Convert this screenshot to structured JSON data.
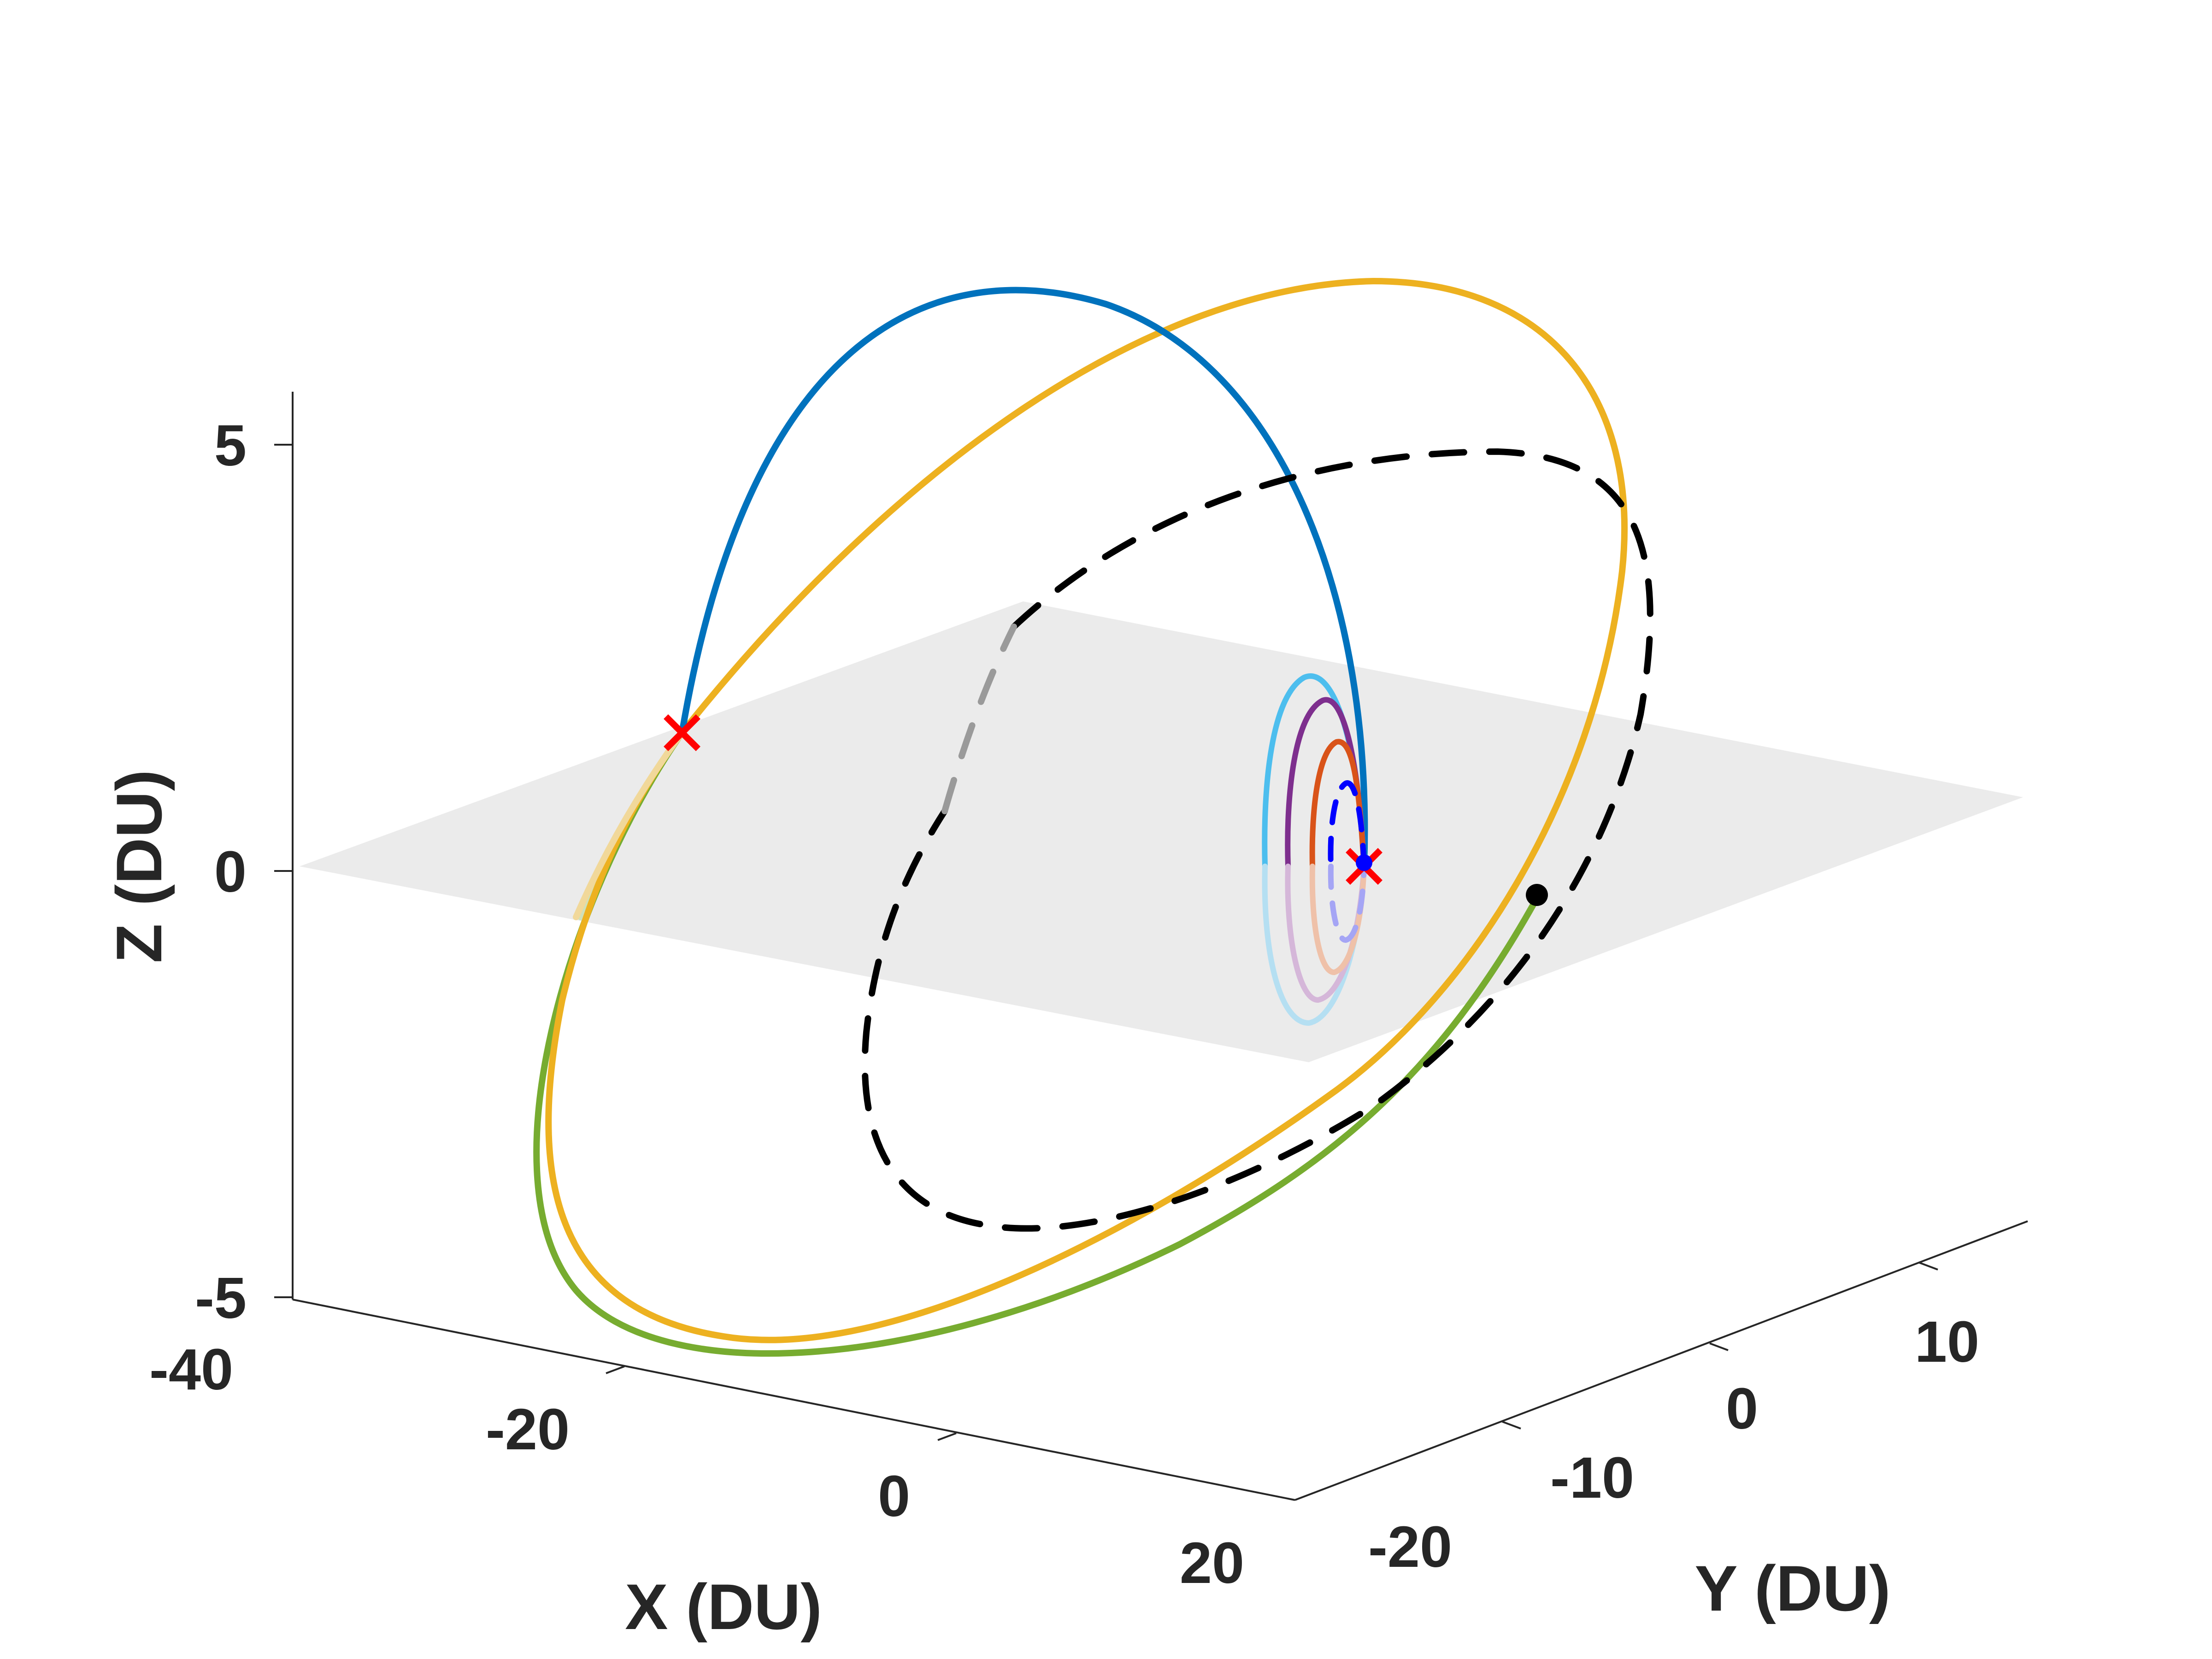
{
  "chart_data": {
    "type": "line",
    "title": "",
    "view": "3d",
    "xlabel": "X (DU)",
    "ylabel": "Y (DU)",
    "zlabel": "Z (DU)",
    "xlim": [
      -40,
      20
    ],
    "ylim": [
      -20,
      15
    ],
    "zlim": [
      -5,
      5
    ],
    "xticks": [
      -40,
      -20,
      0,
      20
    ],
    "yticks": [
      -20,
      -10,
      0,
      10
    ],
    "zticks": [
      -5,
      0,
      5
    ],
    "grid": false,
    "legend": "none",
    "reference_plane": {
      "z": 0,
      "color": "#e0e0e0"
    },
    "colors": {
      "blue": "#0072BD",
      "orange": "#D95319",
      "yellow": "#EDB120",
      "purple": "#7E2F8E",
      "green": "#77AC30",
      "cyan": "#4DBEEE",
      "dashed_orbit": "#000000",
      "dashed_inner": "#0000FF",
      "marker": "#FF0000"
    },
    "series": [
      {
        "color": "blue",
        "style": "solid",
        "description": "high arc from about (-26, 0, 1.6) over the top to the origin"
      },
      {
        "color": "yellow",
        "style": "solid",
        "description": "large inclined ellipse reaching z ≈ 6.6 and z ≈ -5"
      },
      {
        "color": "green",
        "style": "solid",
        "description": "lower large ellipse, tangent to the yellow one"
      },
      {
        "color": "dashed_orbit",
        "style": "dashed",
        "description": "black dashed orbit crossing the plane"
      },
      {
        "color": "cyan",
        "style": "solid",
        "description": "small loop near the origin (outer)"
      },
      {
        "color": "purple",
        "style": "solid",
        "description": "small loop near the origin"
      },
      {
        "color": "orange",
        "style": "solid",
        "description": "small loop near the origin (inner)"
      },
      {
        "color": "dashed_inner",
        "style": "dashed",
        "description": "tiny blue dashed loop at the origin"
      }
    ],
    "markers": [
      {
        "shape": "x",
        "color": "marker",
        "x": -26,
        "y": 0,
        "z": 1.6
      },
      {
        "shape": "x",
        "color": "marker",
        "x": 0,
        "y": 0,
        "z": 0
      },
      {
        "shape": "dot",
        "color": "dashed_orbit",
        "x": 12,
        "y": -8,
        "z": -0.3
      }
    ]
  }
}
